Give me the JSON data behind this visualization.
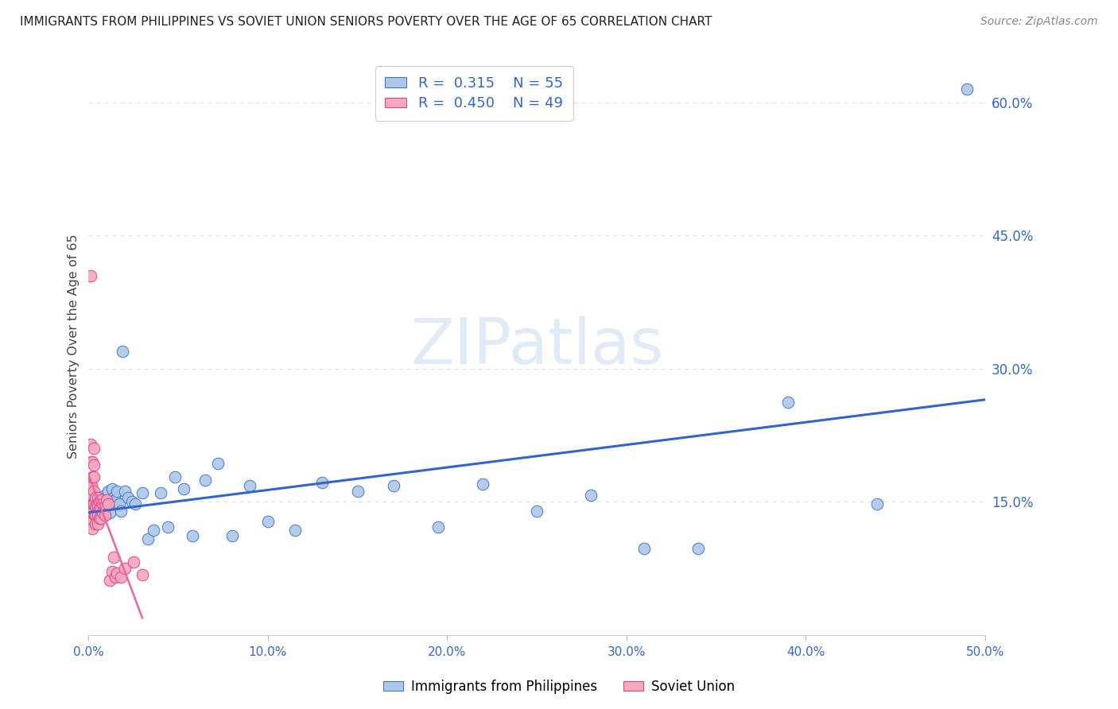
{
  "title": "IMMIGRANTS FROM PHILIPPINES VS SOVIET UNION SENIORS POVERTY OVER THE AGE OF 65 CORRELATION CHART",
  "source": "Source: ZipAtlas.com",
  "ylabel": "Seniors Poverty Over the Age of 65",
  "xlim": [
    0.0,
    0.5
  ],
  "ylim": [
    0.0,
    0.65
  ],
  "xtick_positions": [
    0.0,
    0.1,
    0.2,
    0.3,
    0.4,
    0.5
  ],
  "xticklabels": [
    "0.0%",
    "10.0%",
    "20.0%",
    "30.0%",
    "40.0%",
    "50.0%"
  ],
  "ytick_right_positions": [
    0.15,
    0.3,
    0.45,
    0.6
  ],
  "yticklabels_right": [
    "15.0%",
    "30.0%",
    "45.0%",
    "60.0%"
  ],
  "philippines_R": 0.315,
  "philippines_N": 55,
  "soviet_R": 0.45,
  "soviet_N": 49,
  "philippines_color": "#adc8e8",
  "soviet_color": "#f5a8c0",
  "philippines_edge_color": "#4477cc",
  "soviet_edge_color": "#dd4488",
  "philippines_line_color": "#3366cc",
  "soviet_line_color": "#ee6699",
  "watermark_zip": "ZIP",
  "watermark_atlas": "atlas",
  "legend_label_philippines": "Immigrants from Philippines",
  "legend_label_soviet": "Soviet Union",
  "philippines_x": [
    0.002,
    0.003,
    0.004,
    0.005,
    0.005,
    0.006,
    0.006,
    0.007,
    0.007,
    0.008,
    0.008,
    0.009,
    0.009,
    0.01,
    0.01,
    0.011,
    0.012,
    0.012,
    0.013,
    0.014,
    0.015,
    0.016,
    0.017,
    0.018,
    0.019,
    0.02,
    0.022,
    0.024,
    0.026,
    0.03,
    0.033,
    0.036,
    0.04,
    0.044,
    0.048,
    0.053,
    0.058,
    0.065,
    0.072,
    0.08,
    0.09,
    0.1,
    0.115,
    0.13,
    0.15,
    0.17,
    0.195,
    0.22,
    0.25,
    0.28,
    0.31,
    0.34,
    0.39,
    0.44,
    0.49
  ],
  "philippines_y": [
    0.125,
    0.13,
    0.14,
    0.128,
    0.148,
    0.132,
    0.142,
    0.155,
    0.138,
    0.15,
    0.143,
    0.158,
    0.135,
    0.152,
    0.145,
    0.162,
    0.148,
    0.138,
    0.165,
    0.155,
    0.152,
    0.162,
    0.148,
    0.14,
    0.32,
    0.162,
    0.155,
    0.15,
    0.148,
    0.16,
    0.108,
    0.118,
    0.16,
    0.122,
    0.178,
    0.165,
    0.112,
    0.175,
    0.193,
    0.112,
    0.168,
    0.128,
    0.118,
    0.172,
    0.162,
    0.168,
    0.122,
    0.17,
    0.14,
    0.158,
    0.098,
    0.098,
    0.262,
    0.148,
    0.615
  ],
  "soviet_x": [
    0.001,
    0.001,
    0.001,
    0.001,
    0.001,
    0.0015,
    0.0015,
    0.002,
    0.002,
    0.002,
    0.002,
    0.002,
    0.0025,
    0.003,
    0.003,
    0.003,
    0.003,
    0.003,
    0.0035,
    0.004,
    0.004,
    0.004,
    0.004,
    0.0045,
    0.005,
    0.005,
    0.005,
    0.005,
    0.006,
    0.006,
    0.006,
    0.007,
    0.007,
    0.007,
    0.008,
    0.008,
    0.009,
    0.009,
    0.01,
    0.011,
    0.012,
    0.013,
    0.014,
    0.015,
    0.016,
    0.018,
    0.02,
    0.025,
    0.03
  ],
  "soviet_y": [
    0.405,
    0.215,
    0.175,
    0.148,
    0.128,
    0.195,
    0.168,
    0.195,
    0.178,
    0.158,
    0.138,
    0.12,
    0.148,
    0.21,
    0.192,
    0.178,
    0.162,
    0.148,
    0.135,
    0.155,
    0.145,
    0.135,
    0.125,
    0.148,
    0.155,
    0.145,
    0.135,
    0.125,
    0.15,
    0.142,
    0.132,
    0.152,
    0.142,
    0.132,
    0.148,
    0.138,
    0.145,
    0.135,
    0.152,
    0.148,
    0.062,
    0.072,
    0.088,
    0.065,
    0.07,
    0.065,
    0.075,
    0.082,
    0.068
  ],
  "background_color": "#ffffff",
  "grid_color": "#e0e0e0",
  "title_color": "#222222",
  "axis_label_color": "#444444"
}
